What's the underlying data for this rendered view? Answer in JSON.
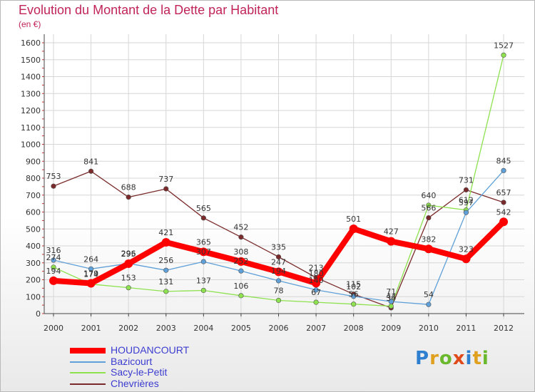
{
  "chart_data": {
    "type": "line",
    "title": "Evolution du Montant de la Dette par Habitant",
    "subtitle": "(en €)",
    "categories": [
      "2000",
      "2001",
      "2002",
      "2003",
      "2004",
      "2005",
      "2006",
      "2007",
      "2008",
      "2009",
      "2010",
      "2011",
      "2012"
    ],
    "y_ticks": [
      "0",
      "100",
      "200",
      "300",
      "400",
      "500",
      "600",
      "700",
      "800",
      "900",
      "1000",
      "1100",
      "1200",
      "1300",
      "1400",
      "1500",
      "1600"
    ],
    "ylim": [
      0,
      1600
    ],
    "grid": true,
    "legend_position": "bottom-left",
    "series": [
      {
        "name": "HOUDANCOURT",
        "color": "#ff0000",
        "values": [
          194,
          179,
          295,
          421,
          365,
          308,
          247,
          180,
          501,
          427,
          382,
          323,
          542
        ]
      },
      {
        "name": "Bazicourt",
        "color": "#5fa0d8",
        "values": [
          316,
          264,
          296,
          256,
          307,
          252,
          194,
          140,
          102,
          71,
          54,
          597,
          845
        ]
      },
      {
        "name": "Sacy-le-Petit",
        "color": "#8ee14f",
        "values": [
          274,
          174,
          153,
          131,
          137,
          106,
          78,
          67,
          56,
          44,
          640,
          612,
          1527
        ]
      },
      {
        "name": "Chevrières",
        "color": "#7a2a2a",
        "values": [
          753,
          841,
          688,
          737,
          565,
          452,
          335,
          213,
          115,
          34,
          566,
          731,
          657
        ]
      }
    ]
  },
  "logo": {
    "text": "Proxiti",
    "letters": [
      "P",
      "r",
      "o",
      "x",
      "i",
      "t",
      "i"
    ]
  }
}
